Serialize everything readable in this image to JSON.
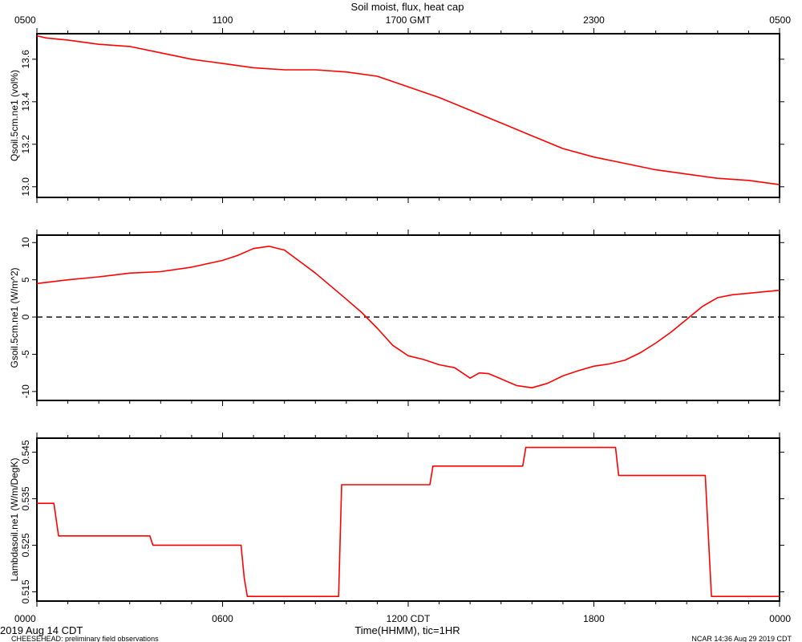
{
  "figure": {
    "title": "Soil moist, flux, heat cap",
    "xlabel": "Time(HHMM), tic=1HR",
    "date_label": "2019 Aug 14 CDT",
    "footer_left": "CHEESEHEAD: preliminary field observations",
    "footer_right": "NCAR 14:36 Aug 29 2019 CDT",
    "line_color": "#ff0000",
    "zero_line_color": "#000000"
  },
  "chart_data": [
    {
      "type": "line",
      "ylabel": "Qsoil.5cm.ne1 (vol%)",
      "ylim": [
        12.95,
        13.72
      ],
      "yticks": [
        13.0,
        13.2,
        13.4,
        13.6
      ],
      "ytick_labels": [
        "13.0",
        "13.2",
        "13.4",
        "13.6"
      ],
      "x_hours": [
        0,
        0.3,
        1,
        2,
        3,
        4,
        5,
        6,
        7,
        8,
        9,
        10,
        10.5,
        11,
        12,
        13,
        14,
        15,
        16,
        17,
        18,
        19,
        20,
        21,
        22,
        23,
        24
      ],
      "series": [
        {
          "values": [
            13.71,
            13.7,
            13.69,
            13.67,
            13.66,
            13.63,
            13.6,
            13.58,
            13.56,
            13.55,
            13.55,
            13.54,
            13.53,
            13.52,
            13.47,
            13.42,
            13.36,
            13.3,
            13.24,
            13.18,
            13.14,
            13.11,
            13.08,
            13.06,
            13.04,
            13.03,
            13.01
          ]
        }
      ]
    },
    {
      "type": "line",
      "ylabel": "Gsoil.5cm.ne1 (W/m^2)",
      "ylim": [
        -11.2,
        11
      ],
      "yticks": [
        -10,
        -5,
        0,
        5,
        10
      ],
      "ytick_labels": [
        "-10",
        "-5",
        "0",
        "5",
        "10"
      ],
      "zero_line": true,
      "x_hours": [
        0,
        1,
        2,
        3,
        4,
        5,
        6,
        6.5,
        7,
        7.5,
        8,
        9,
        10,
        10.5,
        11,
        11.5,
        12,
        12.5,
        13,
        13.5,
        14,
        14.3,
        14.6,
        15,
        15.5,
        16,
        16.5,
        17,
        17.5,
        18,
        18.5,
        19,
        19.5,
        20,
        20.5,
        21,
        21.5,
        22,
        22.5,
        23,
        24
      ],
      "series": [
        {
          "values": [
            4.5,
            5.0,
            5.4,
            5.9,
            6.1,
            6.7,
            7.6,
            8.3,
            9.2,
            9.5,
            9.0,
            5.9,
            2.4,
            0.6,
            -1.5,
            -3.8,
            -5.2,
            -5.7,
            -6.4,
            -6.8,
            -8.2,
            -7.5,
            -7.6,
            -8.3,
            -9.2,
            -9.5,
            -8.9,
            -7.9,
            -7.2,
            -6.6,
            -6.3,
            -5.8,
            -4.8,
            -3.5,
            -2.0,
            -0.3,
            1.4,
            2.6,
            3.0,
            3.2,
            3.6
          ]
        }
      ]
    },
    {
      "type": "line",
      "ylabel": "Lambdasoil.ne1 (W/m/DegK)",
      "ylim": [
        0.513,
        0.548
      ],
      "yticks": [
        0.515,
        0.525,
        0.535,
        0.545
      ],
      "ytick_labels": [
        "0.515",
        "0.525",
        "0.535",
        "0.545"
      ],
      "x_hours": [
        0,
        0.55,
        0.7,
        3.65,
        3.75,
        6.6,
        6.7,
        6.8,
        9.75,
        9.85,
        12.7,
        12.8,
        15.7,
        15.8,
        18.7,
        18.8,
        21.6,
        21.8,
        24
      ],
      "series": [
        {
          "values": [
            0.534,
            0.534,
            0.527,
            0.527,
            0.525,
            0.525,
            0.518,
            0.514,
            0.514,
            0.538,
            0.538,
            0.542,
            0.542,
            0.546,
            0.546,
            0.54,
            0.54,
            0.514,
            0.514
          ]
        }
      ]
    }
  ],
  "x_axis": {
    "bottom_labels": [
      "0000",
      "0600",
      "1200 CDT",
      "1800",
      "0000"
    ],
    "bottom_positions_hours": [
      0,
      6,
      12,
      18,
      24
    ],
    "top_labels": [
      "0500",
      "1100",
      "1700 GMT",
      "2300",
      "0500"
    ],
    "top_positions_hours": [
      0,
      6,
      12,
      18,
      24
    ],
    "range_hours": [
      0,
      24
    ],
    "minor_tick_step_hours": 1
  }
}
